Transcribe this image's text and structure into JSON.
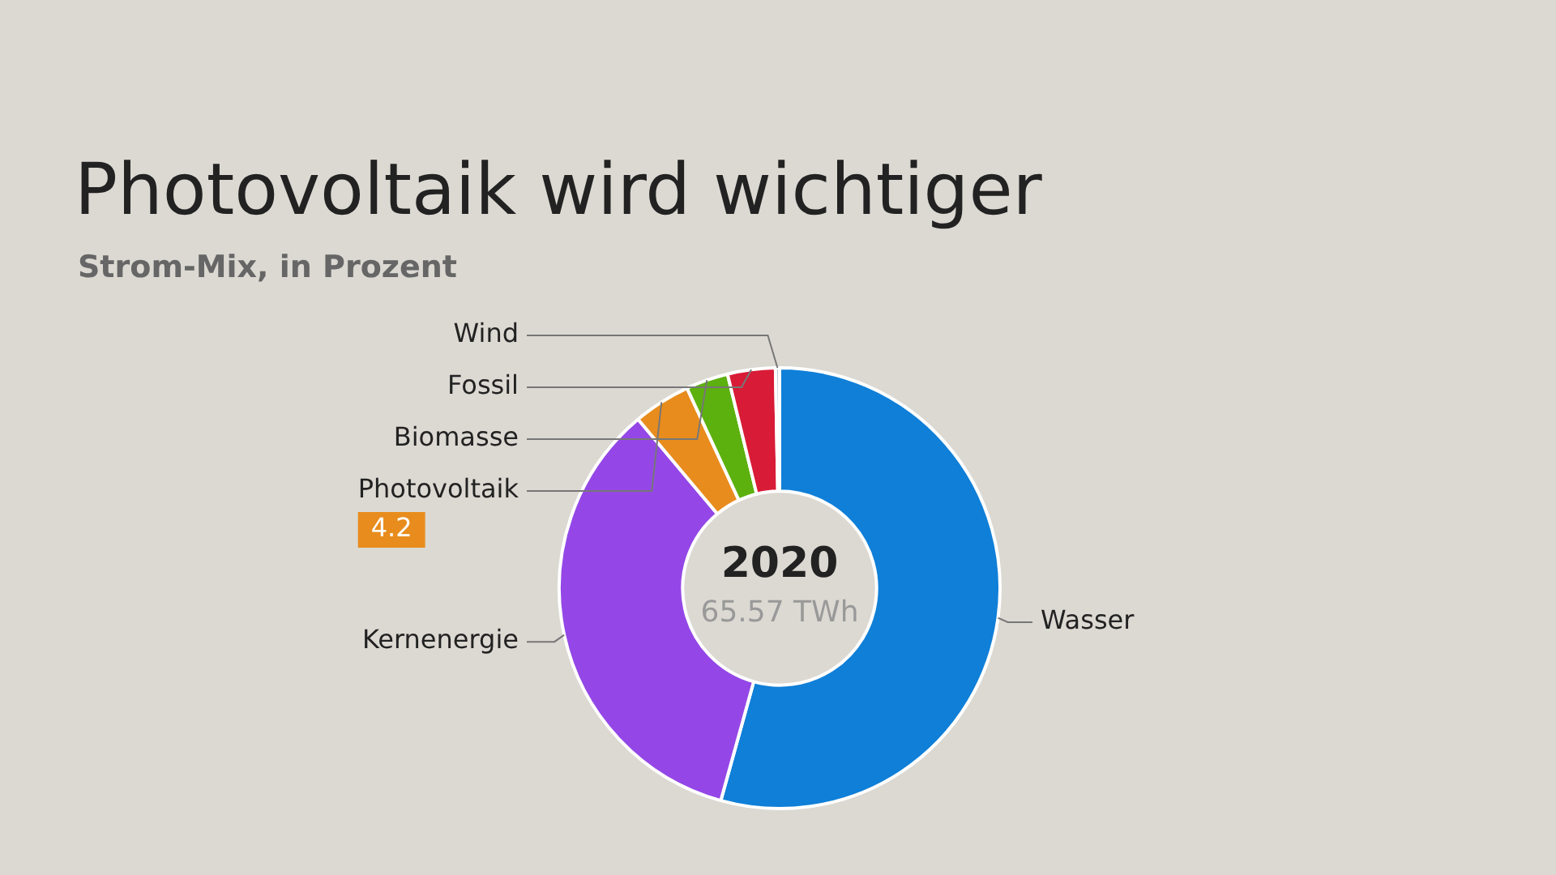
{
  "chart_data": {
    "type": "donut",
    "title": "Photovoltaik wird wichtiger",
    "subtitle": "Strom-Mix, in Prozent",
    "categories": [
      "Wasser",
      "Kernenergie",
      "Photovoltaik",
      "Biomasse",
      "Fossil",
      "Wind"
    ],
    "values": [
      54.3,
      34.6,
      4.2,
      3.1,
      3.5,
      0.3
    ],
    "colors": [
      "#0f7fd8",
      "#9447e6",
      "#e88c1d",
      "#5cb10e",
      "#d81b36",
      "#b9c7d6"
    ],
    "value_labels": [
      null,
      null,
      "4.2",
      null,
      null,
      null
    ],
    "annotations": [
      "2020",
      "65.57 TWh"
    ],
    "legend": false
  }
}
